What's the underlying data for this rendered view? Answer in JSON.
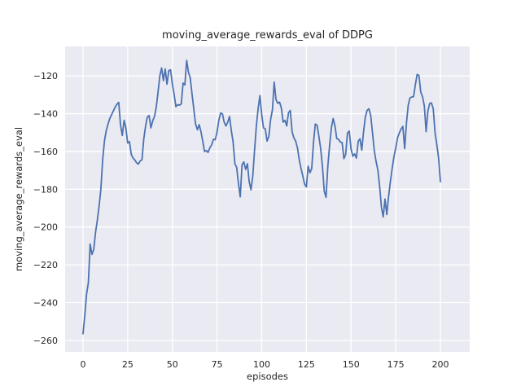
{
  "chart_data": {
    "type": "line",
    "title": "moving_average_rewards_eval of DDPG",
    "xlabel": "episodes",
    "ylabel": "moving_average_rewards_eval",
    "legend": "none",
    "grid": true,
    "xlim": [
      -10,
      216.4
    ],
    "ylim": [
      -266.1,
      -104.4
    ],
    "xticks": [
      0,
      25,
      50,
      75,
      100,
      125,
      150,
      175,
      200
    ],
    "yticks": [
      -120,
      -140,
      -160,
      -180,
      -200,
      -220,
      -240,
      -260
    ],
    "x_start": 0,
    "x_step": 1,
    "series_name": "moving_average_rewards_eval",
    "values": [
      -256.5,
      -247.0,
      -235.5,
      -229.5,
      -209.0,
      -214.5,
      -212.0,
      -203.0,
      -196.5,
      -189.0,
      -180.0,
      -164.5,
      -154.5,
      -149.0,
      -145.5,
      -142.5,
      -140.5,
      -138.5,
      -136.5,
      -135.0,
      -134.0,
      -146.0,
      -151.5,
      -143.5,
      -147.5,
      -155.5,
      -154.8,
      -161.5,
      -163.5,
      -164.5,
      -166.0,
      -166.7,
      -165.0,
      -164.4,
      -153.5,
      -146.7,
      -141.8,
      -141.0,
      -147.5,
      -143.8,
      -141.5,
      -136.5,
      -128.5,
      -120.0,
      -115.8,
      -122.5,
      -116.3,
      -124.4,
      -117.2,
      -116.8,
      -124.3,
      -129.8,
      -136.3,
      -135.2,
      -135.5,
      -134.8,
      -123.8,
      -124.8,
      -111.8,
      -118.0,
      -121.0,
      -129.5,
      -137.5,
      -145.5,
      -148.5,
      -145.8,
      -149.5,
      -154.5,
      -160.0,
      -159.5,
      -160.5,
      -158.0,
      -156.5,
      -153.5,
      -153.8,
      -149.8,
      -143.5,
      -139.7,
      -140.0,
      -144.5,
      -146.5,
      -144.5,
      -141.5,
      -149.0,
      -155.0,
      -166.5,
      -168.5,
      -177.0,
      -184.0,
      -167.0,
      -165.5,
      -169.5,
      -166.5,
      -176.0,
      -180.3,
      -173.0,
      -159.5,
      -146.5,
      -137.5,
      -130.4,
      -140.5,
      -147.5,
      -148.0,
      -154.5,
      -152.0,
      -143.0,
      -138.0,
      -123.3,
      -132.5,
      -134.5,
      -133.9,
      -137.0,
      -144.5,
      -143.5,
      -146.5,
      -139.5,
      -138.3,
      -149.5,
      -152.8,
      -154.5,
      -158.0,
      -164.3,
      -169.0,
      -173.0,
      -177.3,
      -178.8,
      -167.8,
      -171.3,
      -169.0,
      -155.0,
      -145.5,
      -146.1,
      -152.0,
      -158.5,
      -168.0,
      -181.0,
      -184.3,
      -167.8,
      -156.8,
      -147.5,
      -142.6,
      -146.5,
      -153.2,
      -153.6,
      -155.0,
      -155.3,
      -163.8,
      -161.5,
      -150.2,
      -149.2,
      -158.7,
      -162.5,
      -161.3,
      -163.5,
      -154.6,
      -153.3,
      -159.3,
      -149.5,
      -141.8,
      -138.2,
      -137.4,
      -141.0,
      -150.0,
      -159.6,
      -165.3,
      -169.8,
      -178.5,
      -189.5,
      -194.6,
      -185.2,
      -193.4,
      -183.8,
      -176.0,
      -169.0,
      -162.8,
      -158.2,
      -152.8,
      -150.2,
      -148.1,
      -146.7,
      -158.5,
      -145.0,
      -135.5,
      -131.6,
      -131.2,
      -130.9,
      -124.5,
      -119.2,
      -119.8,
      -128.5,
      -131.0,
      -135.8,
      -149.5,
      -138.5,
      -134.6,
      -134.3,
      -137.5,
      -150.0,
      -156.5,
      -163.5,
      -176.0
    ],
    "colors": {
      "line": "#4C72B0",
      "axes_bg": "#EAEAF2",
      "grid": "#FFFFFF",
      "fig_bg": "#FFFFFF",
      "text": "#262626"
    }
  }
}
